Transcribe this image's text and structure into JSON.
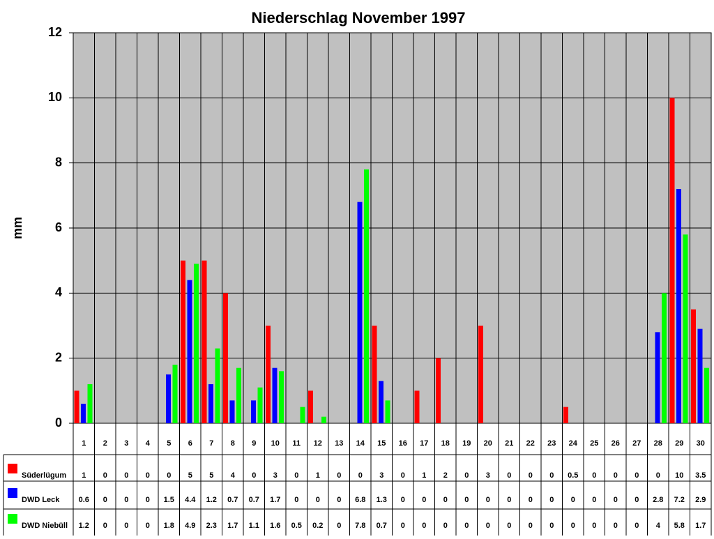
{
  "chart_data": {
    "type": "bar",
    "title": "Niederschlag November 1997",
    "y_label": "mm",
    "categories": [
      "1",
      "2",
      "3",
      "4",
      "5",
      "6",
      "7",
      "8",
      "9",
      "10",
      "11",
      "12",
      "13",
      "14",
      "15",
      "16",
      "17",
      "18",
      "19",
      "20",
      "21",
      "22",
      "23",
      "24",
      "25",
      "26",
      "27",
      "28",
      "29",
      "30"
    ],
    "series": [
      {
        "name": "Süderlügum",
        "color": "#ff0000",
        "values": [
          1,
          0,
          0,
          0,
          0,
          5,
          5,
          4,
          0,
          3,
          0,
          1,
          0,
          0,
          3,
          0,
          1,
          2,
          0,
          3,
          0,
          0,
          0,
          0.5,
          0,
          0,
          0,
          0,
          10,
          3.5
        ]
      },
      {
        "name": "DWD Leck",
        "color": "#0000ff",
        "values": [
          0.6,
          0,
          0,
          0,
          1.5,
          4.4,
          1.2,
          0.7,
          0.7,
          1.7,
          0,
          0,
          0,
          6.8,
          1.3,
          0,
          0,
          0,
          0,
          0,
          0,
          0,
          0,
          0,
          0,
          0,
          0,
          2.8,
          7.2,
          2.9
        ]
      },
      {
        "name": "DWD Niebüll",
        "color": "#00ff00",
        "values": [
          1.2,
          0,
          0,
          0,
          1.8,
          4.9,
          2.3,
          1.7,
          1.1,
          1.6,
          0.5,
          0.2,
          0,
          7.8,
          0.7,
          0,
          0,
          0,
          0,
          0,
          0,
          0,
          0,
          0,
          0,
          0,
          0,
          4,
          5.8,
          1.7
        ]
      }
    ],
    "ylim": [
      0,
      12
    ],
    "yticks": [
      0,
      2,
      4,
      6,
      8,
      10,
      12
    ],
    "grid": true,
    "data_table": true
  }
}
